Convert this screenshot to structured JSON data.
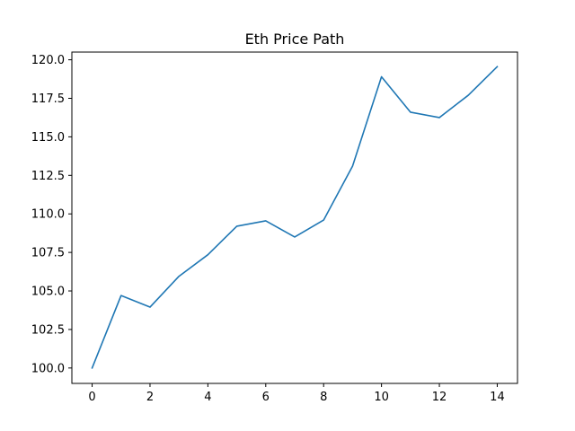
{
  "chart_data": {
    "type": "line",
    "title": "Eth Price Path",
    "xlabel": "",
    "ylabel": "",
    "x": [
      0,
      1,
      2,
      3,
      4,
      5,
      6,
      7,
      8,
      9,
      10,
      11,
      12,
      13,
      14
    ],
    "series": [
      {
        "color": "#1f77b4",
        "values": [
          100.0,
          104.7,
          103.95,
          105.95,
          107.35,
          109.2,
          109.55,
          108.5,
          109.6,
          113.1,
          118.9,
          116.6,
          116.25,
          117.7,
          119.55
        ]
      }
    ],
    "xlim": [
      -0.7,
      14.7
    ],
    "ylim": [
      99.0,
      120.5
    ],
    "xticks": [
      0,
      2,
      4,
      6,
      8,
      10,
      12,
      14
    ],
    "xtick_labels": [
      "0",
      "2",
      "4",
      "6",
      "8",
      "10",
      "12",
      "14"
    ],
    "yticks": [
      100.0,
      102.5,
      105.0,
      107.5,
      110.0,
      112.5,
      115.0,
      117.5,
      120.0
    ],
    "ytick_labels": [
      "100.0",
      "102.5",
      "105.0",
      "107.5",
      "110.0",
      "112.5",
      "115.0",
      "117.5",
      "120.0"
    ],
    "grid": false,
    "legend": "none"
  }
}
